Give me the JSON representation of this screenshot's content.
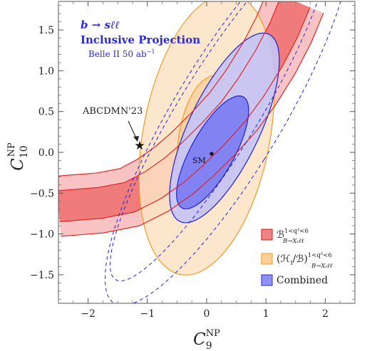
{
  "chart_data": {
    "type": "contour",
    "xlim": [
      -2.5,
      2.5
    ],
    "ylim": [
      -1.85,
      1.85
    ],
    "xticks": [
      -2,
      -1,
      0,
      1,
      2
    ],
    "yticks": [
      -1.5,
      -1.0,
      -0.5,
      0.0,
      0.5,
      1.0,
      1.5
    ],
    "xtick_labels": [
      "−2",
      "−1",
      "0",
      "1",
      "2"
    ],
    "ytick_labels": [
      "−1.5",
      "−1.0",
      "−0.5",
      "0.0",
      "0.5",
      "1.0",
      "1.5"
    ],
    "xlabel": {
      "base": "C",
      "sub": "9",
      "sup": "NP"
    },
    "ylabel": {
      "base": "C",
      "sub": "10",
      "sup": "NP"
    },
    "title_lines": {
      "process": "b → sℓℓ",
      "projection": "Inclusive Projection",
      "experiment_base": "Belle II 50 ab",
      "experiment_exp": "−1"
    },
    "sm_point": {
      "x": 0.0,
      "y": 0.0,
      "label": "SM"
    },
    "star_point": {
      "x": -1.2,
      "y": 0.1,
      "label": "ABCDMN'23",
      "label_x": -1.4,
      "label_y": 0.52
    },
    "legend": {
      "position": "bottom-right",
      "entries": [
        {
          "name": "B_ratio",
          "base": "ℬ",
          "sup": "1<q²<6",
          "sub": "B→Xₛℓℓ",
          "fill": "#f08484",
          "stroke": "#d81818"
        },
        {
          "name": "HI_ratio",
          "base": "(ℋ",
          "base_sub": "I",
          "base_tail": "/ℬ)",
          "sup": "1<q²<6",
          "sub": "B→Xₛℓℓ",
          "fill": "#ffcf97",
          "stroke": "#f39a2a"
        },
        {
          "name": "combined",
          "label": "Combined",
          "fill": "#9090f5",
          "stroke": "#2a2ad6"
        }
      ]
    },
    "colors": {
      "red_fill_outer": "#f9c3c3",
      "red_fill_inner": "#ef7b7b",
      "red_line": "#e01b1b",
      "orange_fill_outer": "#fde3c3",
      "orange_fill_inner": "#fbcf95",
      "orange_line": "#f29a28",
      "blue_fill_outer": "#c4c4f7",
      "blue_fill_inner": "#7e7ef2",
      "blue_line": "#1f1fd1",
      "dashed_line": "#2323d8"
    },
    "regions": {
      "red_band": {
        "center_line": [
          [
            -2.5,
            -0.66
          ],
          [
            -1.8,
            -0.62
          ],
          [
            -1.3,
            -0.55
          ],
          [
            -0.9,
            -0.4
          ],
          [
            -0.55,
            -0.22
          ],
          [
            -0.25,
            -0.03
          ],
          [
            0.1,
            0.22
          ],
          [
            0.45,
            0.5
          ],
          [
            0.75,
            0.8
          ],
          [
            1.05,
            1.15
          ],
          [
            1.3,
            1.5
          ],
          [
            1.5,
            1.85
          ]
        ],
        "outer_half_width": 0.37,
        "inner_half_width": 0.19
      },
      "orange_ellipses": [
        {
          "level": "outer",
          "cx": 0.0,
          "cy": 0.22,
          "rx": 1.05,
          "ry": 1.78,
          "rotation_deg": -18
        },
        {
          "level": "inner",
          "cx": 0.02,
          "cy": 0.1,
          "rx": 0.5,
          "ry": 0.85,
          "rotation_deg": -12
        }
      ],
      "combined_ellipses": [
        {
          "level": "outer",
          "cx": 0.3,
          "cy": 0.3,
          "rx": 0.55,
          "ry": 1.38,
          "rotation_deg": -36
        },
        {
          "level": "inner",
          "cx": 0.1,
          "cy": 0.0,
          "rx": 0.33,
          "ry": 0.86,
          "rotation_deg": -40
        }
      ],
      "dashed_ellipses": [
        {
          "cx": 0.2,
          "cy": 0.5,
          "rx": 0.6,
          "ry": 2.7,
          "rotation_deg": -41
        },
        {
          "cx": 0.35,
          "cy": 0.45,
          "rx": 0.82,
          "ry": 3.0,
          "rotation_deg": -41
        }
      ]
    }
  }
}
